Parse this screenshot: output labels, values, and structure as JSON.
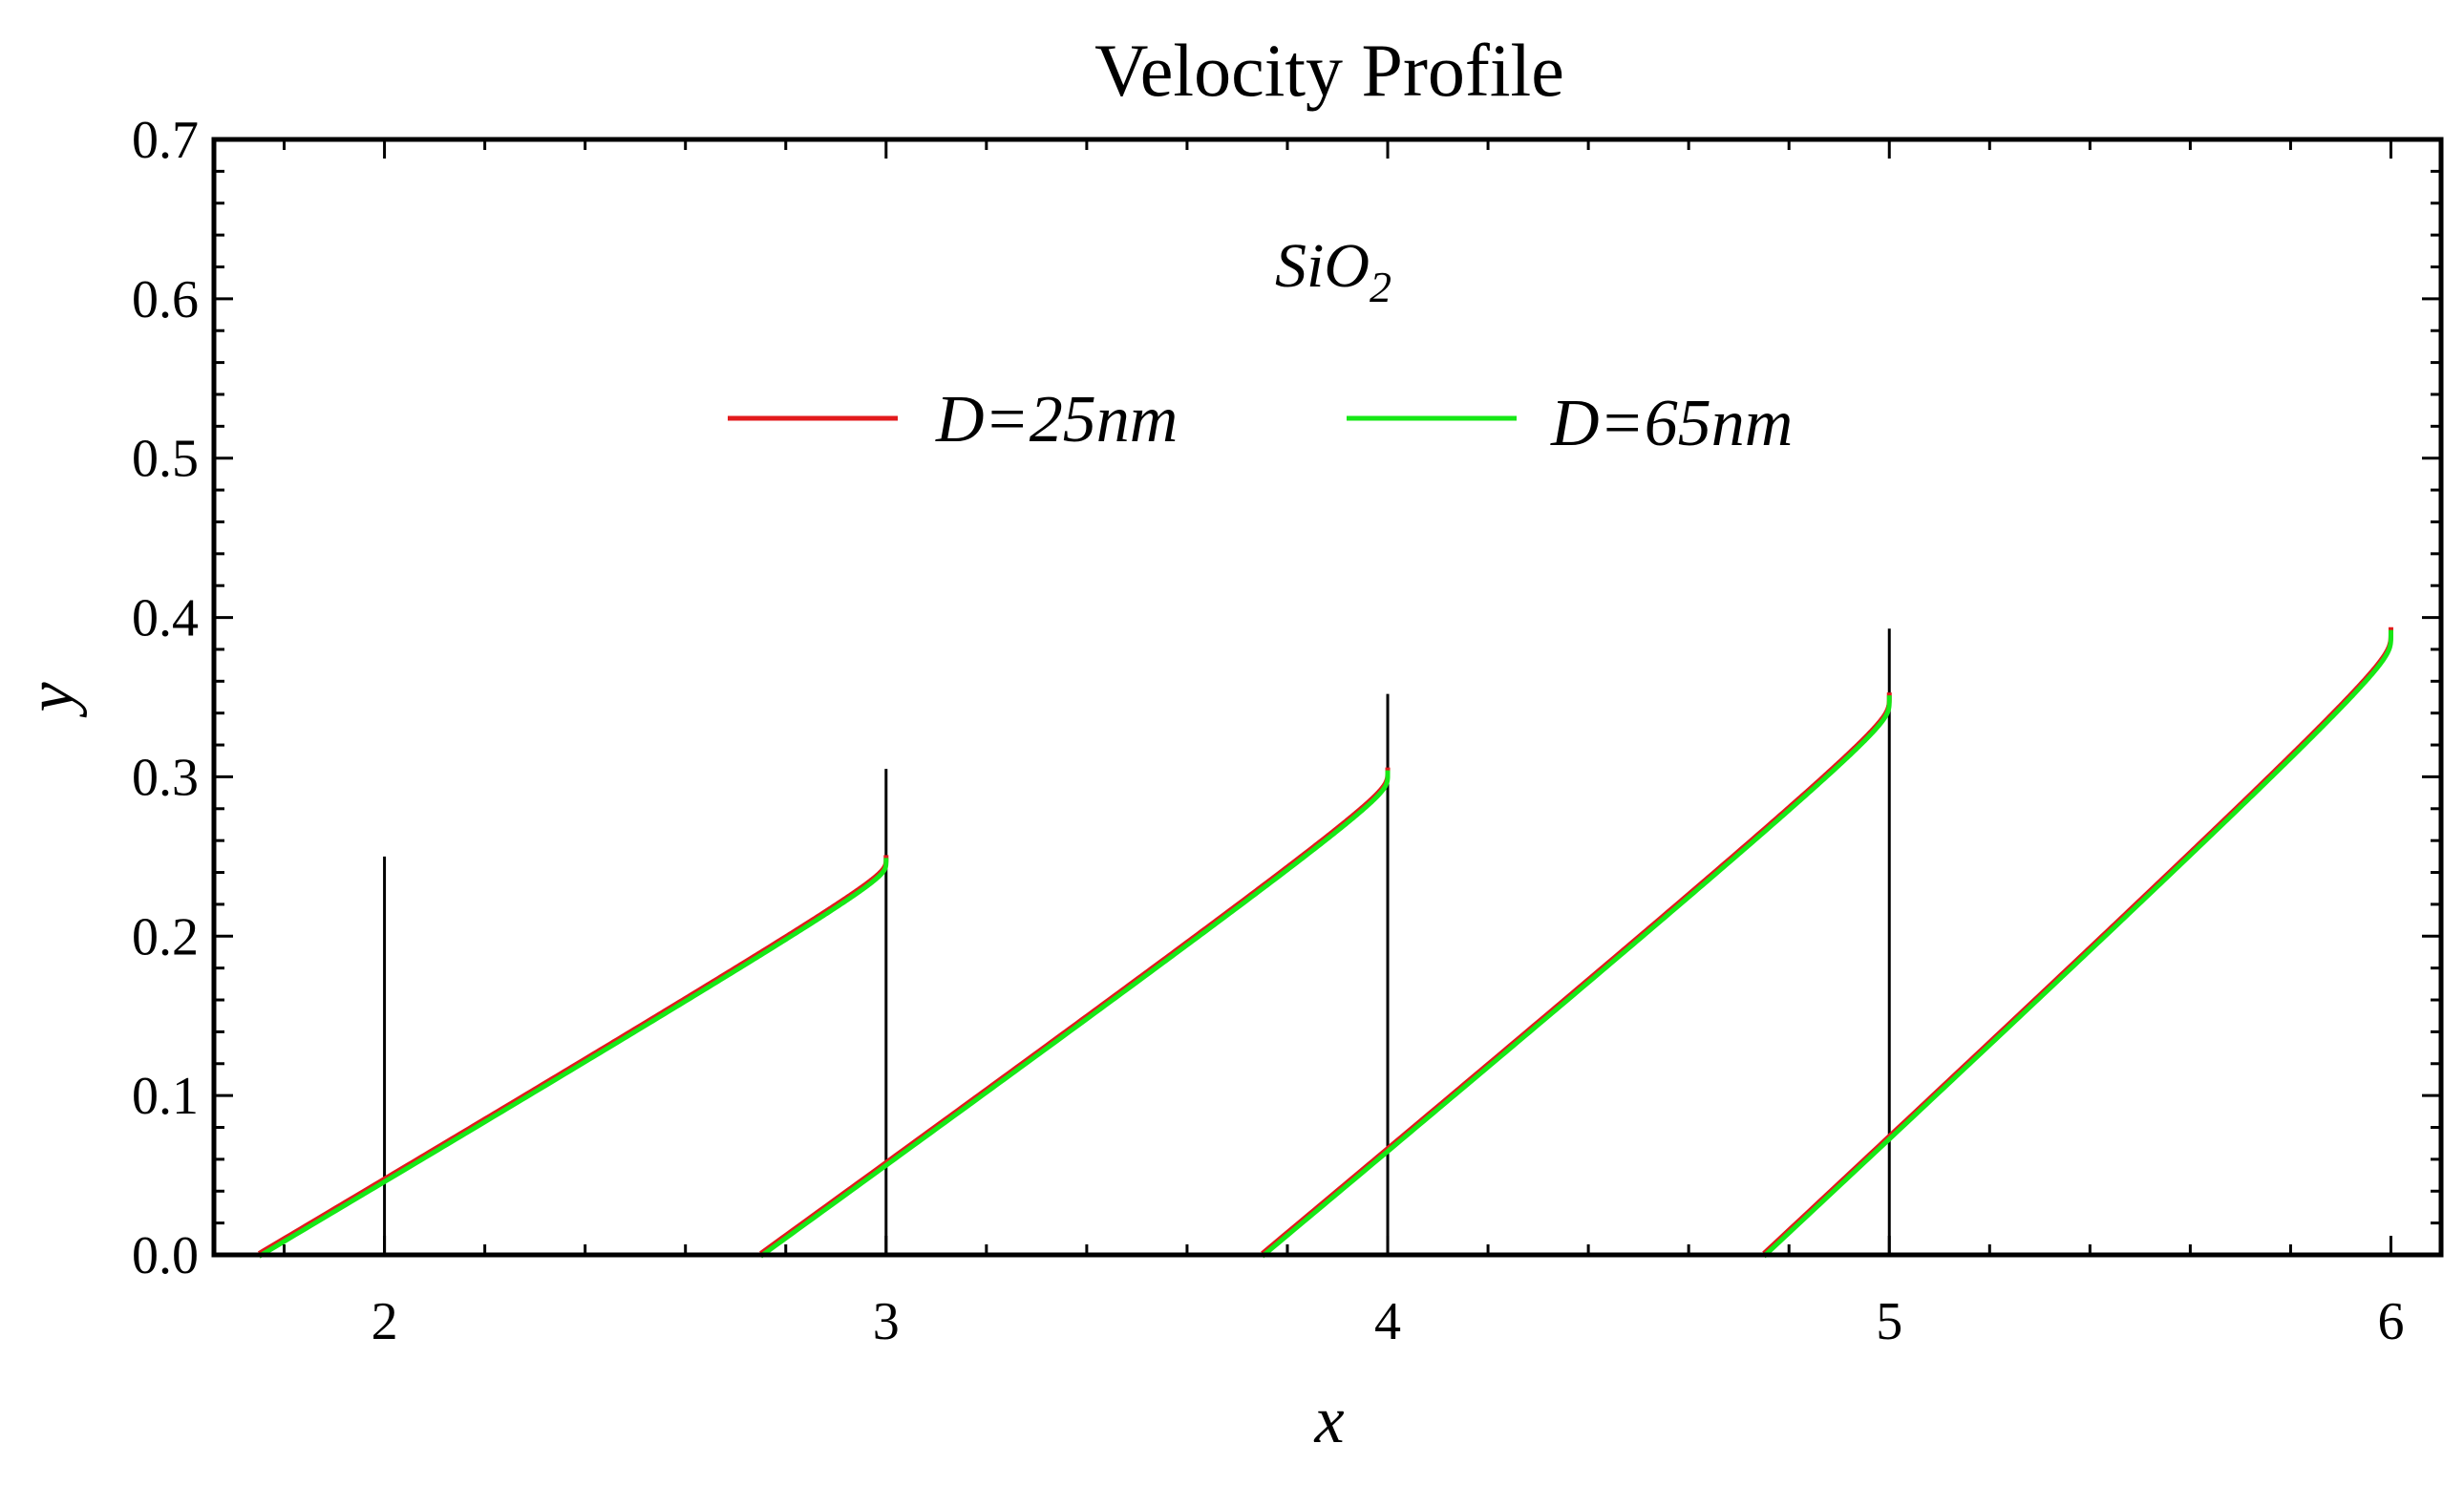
{
  "chart_data": {
    "type": "line",
    "title": "Velocity Profile",
    "xlabel": "x",
    "ylabel": "y",
    "xlim": [
      1.66,
      6.1
    ],
    "ylim": [
      0,
      0.7
    ],
    "xticks": [
      2,
      3,
      4,
      5,
      6
    ],
    "yticks": [
      0.0,
      0.1,
      0.2,
      0.3,
      0.4,
      0.5,
      0.6,
      0.7
    ],
    "ytick_labels": [
      "0.0",
      "0.1",
      "0.2",
      "0.3",
      "0.4",
      "0.5",
      "0.6",
      "0.7"
    ],
    "annotation": {
      "base": "SiO",
      "subscript": "2"
    },
    "legend_position": "top-center",
    "colors": {
      "D25": "#e31a1c",
      "D65": "#16e816",
      "reference": "#000000"
    },
    "reference_lines": [
      {
        "x": 2,
        "y_top": 0.25
      },
      {
        "x": 3,
        "y_top": 0.305
      },
      {
        "x": 4,
        "y_top": 0.352
      },
      {
        "x": 5,
        "y_top": 0.393
      }
    ],
    "curves": [
      {
        "x0": 1.75,
        "x1": 3,
        "y_top": 0.25
      },
      {
        "x0": 2.75,
        "x1": 4,
        "y_top": 0.305
      },
      {
        "x0": 3.75,
        "x1": 5,
        "y_top": 0.352
      },
      {
        "x0": 4.75,
        "x1": 6,
        "y_top": 0.393
      }
    ],
    "series": [
      {
        "name": "D=25nm",
        "key": "D25"
      },
      {
        "name": "D=65nm",
        "key": "D65"
      }
    ]
  }
}
